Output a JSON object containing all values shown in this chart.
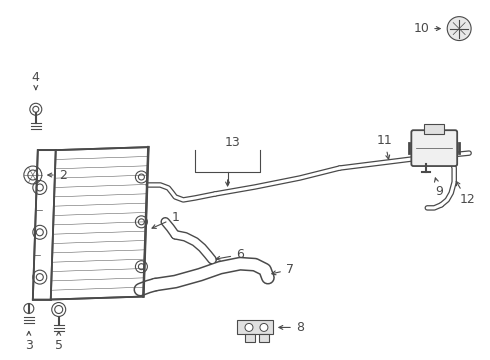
{
  "background_color": "#ffffff",
  "line_color": "#4a4a4a",
  "label_color": "#000000",
  "lw_main": 1.3,
  "lw_thin": 0.8,
  "figsize": [
    4.9,
    3.6
  ],
  "dpi": 100
}
